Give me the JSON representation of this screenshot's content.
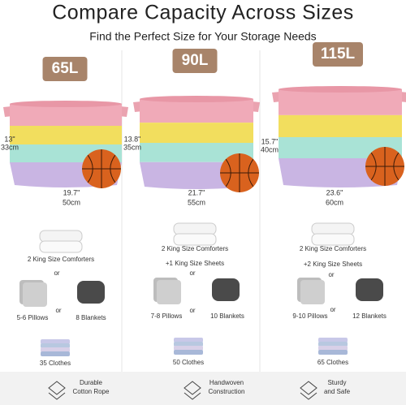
{
  "header": {
    "title": "Compare Capacity Across Sizes",
    "subtitle": "Find the Perfect Size for Your Storage Needs"
  },
  "columns": [
    {
      "capacity": "65L",
      "height_in": "13\"",
      "height_cm": "33cm",
      "width_in": "19.7\"",
      "width_cm": "50cm",
      "comforters": "2 King Size Comforters",
      "or_1": "or",
      "pillows": "5-6 Pillows",
      "or_2": "or",
      "blankets": "8 Blankets",
      "clothes": "35 Clothes"
    },
    {
      "capacity": "90L",
      "height_in": "13.8\"",
      "height_cm": "35cm",
      "width_in": "21.7\"",
      "width_cm": "55cm",
      "comforters": "2 King Size Comforters",
      "sheets": "+1 King Size Sheets",
      "or_1": "or",
      "pillows": "7-8 Pillows",
      "or_2": "or",
      "blankets": "10 Blankets",
      "clothes": "50 Clothes"
    },
    {
      "capacity": "115L",
      "height_in": "15.7\"",
      "height_cm": "40cm",
      "width_in": "23.6\"",
      "width_cm": "60cm",
      "comforters": "2 King Size Comforters",
      "sheets": "+2 King Size Sheets",
      "or_1": "or",
      "pillows": "9-10 Pillows",
      "or_2": "or",
      "blankets": "12 Blankets",
      "clothes": "65 Clothes"
    }
  ],
  "features": [
    {
      "line1": "Durable",
      "line2": "Cotton Rope"
    },
    {
      "line1": "Handwoven",
      "line2": "Construction"
    },
    {
      "line1": "Sturdy",
      "line2": "and Safe"
    }
  ]
}
